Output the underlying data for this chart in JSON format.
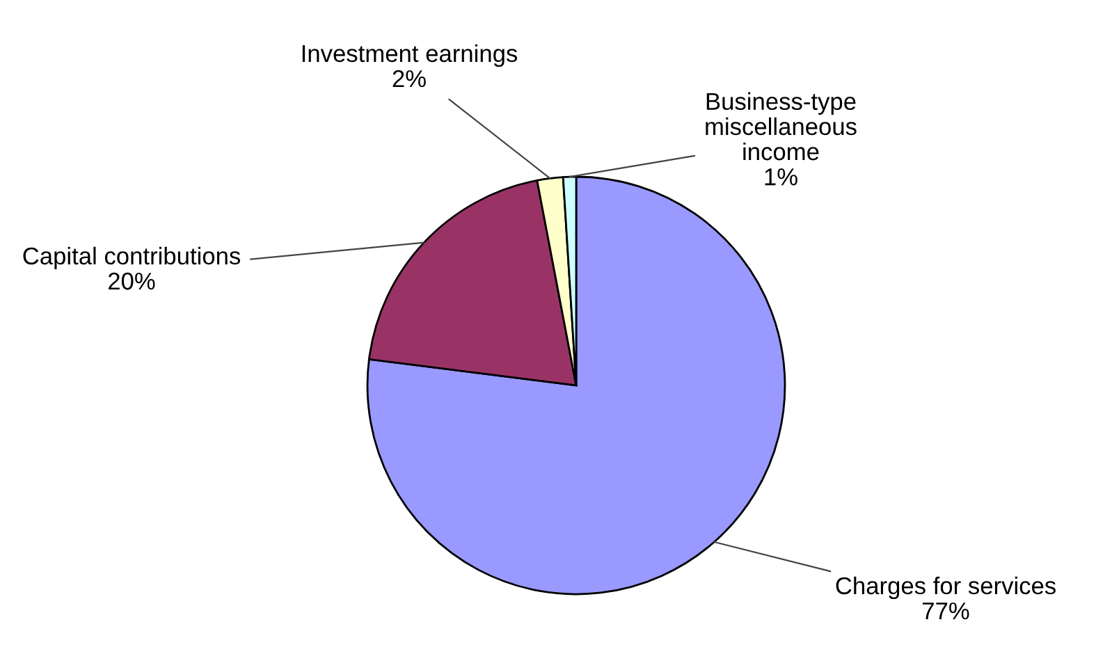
{
  "chart_data": {
    "type": "pie",
    "categories": [
      "Charges for services",
      "Capital contributions",
      "Investment earnings",
      "Business-type\nmiscellaneous\nincome"
    ],
    "values": [
      77,
      20,
      2,
      1
    ],
    "colors": [
      "#9999ff",
      "#993366",
      "#ffffcc",
      "#ccffff"
    ],
    "value_labels": [
      "77%",
      "20%",
      "2%",
      "1%"
    ],
    "legend": false
  }
}
